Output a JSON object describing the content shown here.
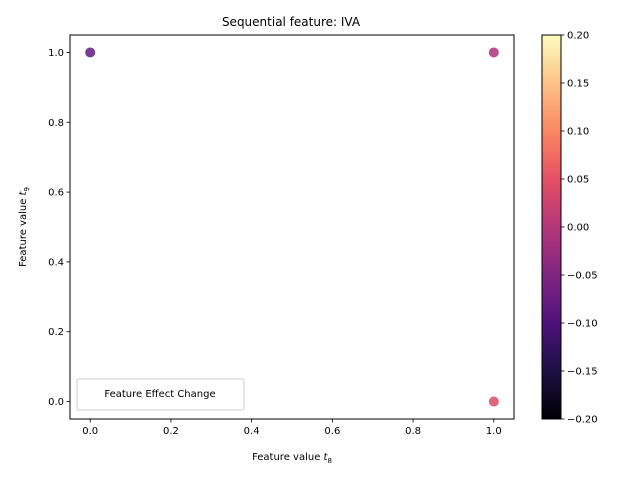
{
  "chart_data": {
    "type": "scatter",
    "title": "Sequential feature: IVA",
    "xlabel_prefix": "Feature value",
    "xlabel_var": "t",
    "xlabel_sub": "8",
    "ylabel_prefix": "Feature value",
    "ylabel_var": "t",
    "ylabel_sub": "9",
    "xlim": [
      -0.05,
      1.05
    ],
    "ylim": [
      -0.05,
      1.05
    ],
    "xticks": [
      0.0,
      0.2,
      0.4,
      0.6,
      0.8,
      1.0
    ],
    "xtick_labels": [
      "0.0",
      "0.2",
      "0.4",
      "0.6",
      "0.8",
      "1.0"
    ],
    "yticks": [
      0.0,
      0.2,
      0.4,
      0.6,
      0.8,
      1.0
    ],
    "ytick_labels": [
      "0.0",
      "0.2",
      "0.4",
      "0.6",
      "0.8",
      "1.0"
    ],
    "points": [
      {
        "x": 0.0,
        "y": 1.0,
        "value": -0.08
      },
      {
        "x": 1.0,
        "y": 1.0,
        "value": -0.01
      },
      {
        "x": 1.0,
        "y": 0.0,
        "value": 0.04
      }
    ],
    "colormap": "magma",
    "colorbar": {
      "min": -0.2,
      "max": 0.2,
      "ticks": [
        -0.2,
        -0.15,
        -0.1,
        -0.05,
        0.0,
        0.05,
        0.1,
        0.15,
        0.2
      ],
      "tick_labels": [
        "−0.20",
        "−0.15",
        "−0.10",
        "−0.05",
        "0.00",
        "0.05",
        "0.10",
        "0.15",
        "0.20"
      ]
    },
    "legend": {
      "title": "Feature Effect Change",
      "placement": "lower-left"
    },
    "grid": false
  }
}
